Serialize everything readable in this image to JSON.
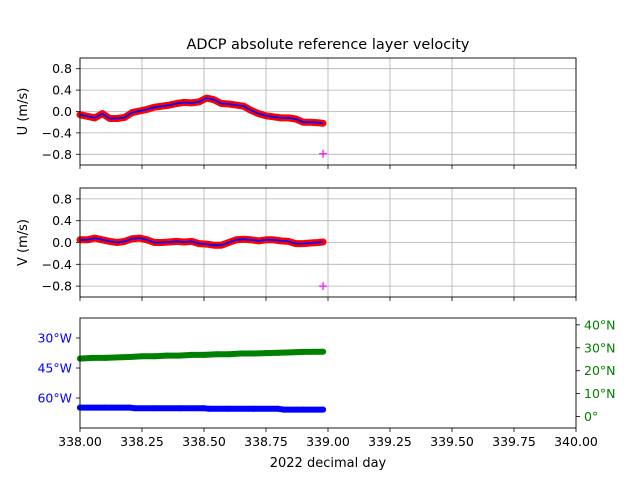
{
  "title": "ADCP absolute reference layer velocity",
  "colors": {
    "grid": "#b0b0b0",
    "u_red": "#ff0000",
    "u_blue": "#0000ff",
    "magenta": "#ff00ff",
    "lon": "#0000ff",
    "lat": "#008000"
  },
  "chart_data": [
    {
      "type": "scatter",
      "panel": "u",
      "ylabel": "U (m/s)",
      "xlim": [
        338.0,
        340.0
      ],
      "ylim": [
        -1.0,
        1.0
      ],
      "yticks": [
        -0.8,
        -0.4,
        0.0,
        0.4,
        0.8
      ],
      "ytick_labels": [
        "−0.8",
        "−0.4",
        "0.0",
        "0.4",
        "0.8"
      ],
      "grid": true,
      "series": [
        {
          "marker": "dot",
          "x": [
            338.0,
            338.03,
            338.06,
            338.09,
            338.12,
            338.15,
            338.18,
            338.21,
            338.24,
            338.27,
            338.3,
            338.33,
            338.36,
            338.39,
            338.42,
            338.45,
            338.48,
            338.51,
            338.54,
            338.57,
            338.6,
            338.63,
            338.66,
            338.69,
            338.72,
            338.75,
            338.78,
            338.81,
            338.84,
            338.87,
            338.9,
            338.93,
            338.96,
            338.98
          ],
          "y": [
            -0.06,
            -0.09,
            -0.12,
            -0.04,
            -0.13,
            -0.13,
            -0.11,
            -0.02,
            0.01,
            0.04,
            0.08,
            0.1,
            0.12,
            0.15,
            0.17,
            0.16,
            0.18,
            0.25,
            0.22,
            0.15,
            0.14,
            0.12,
            0.1,
            0.02,
            -0.04,
            -0.08,
            -0.1,
            -0.12,
            -0.12,
            -0.14,
            -0.2,
            -0.2,
            -0.21,
            -0.22
          ]
        },
        {
          "marker": "plus",
          "x": [
            338.98
          ],
          "y": [
            -0.79
          ]
        }
      ]
    },
    {
      "type": "scatter",
      "panel": "v",
      "ylabel": "V (m/s)",
      "xlim": [
        338.0,
        340.0
      ],
      "ylim": [
        -1.0,
        1.0
      ],
      "yticks": [
        -0.8,
        -0.4,
        0.0,
        0.4,
        0.8
      ],
      "ytick_labels": [
        "−0.8",
        "−0.4",
        "0.0",
        "0.4",
        "0.8"
      ],
      "grid": true,
      "series": [
        {
          "marker": "dot",
          "x": [
            338.0,
            338.03,
            338.06,
            338.09,
            338.12,
            338.15,
            338.18,
            338.21,
            338.24,
            338.27,
            338.3,
            338.33,
            338.36,
            338.39,
            338.42,
            338.45,
            338.48,
            338.51,
            338.54,
            338.57,
            338.6,
            338.63,
            338.66,
            338.69,
            338.72,
            338.75,
            338.78,
            338.81,
            338.84,
            338.87,
            338.9,
            338.93,
            338.96,
            338.98
          ],
          "y": [
            0.05,
            0.05,
            0.08,
            0.05,
            0.02,
            0.0,
            0.02,
            0.07,
            0.08,
            0.05,
            0.0,
            0.0,
            0.01,
            0.02,
            0.01,
            0.02,
            -0.02,
            -0.03,
            -0.05,
            -0.05,
            0.0,
            0.05,
            0.06,
            0.05,
            0.03,
            0.05,
            0.05,
            0.03,
            0.02,
            -0.02,
            -0.02,
            -0.01,
            0.0,
            0.01
          ]
        },
        {
          "marker": "plus",
          "x": [
            338.98
          ],
          "y": [
            -0.8
          ]
        }
      ]
    },
    {
      "type": "scatter",
      "panel": "position",
      "xlabel": "2022 decimal day",
      "xlim": [
        338.0,
        340.0
      ],
      "xticks": [
        338.0,
        338.25,
        338.5,
        338.75,
        339.0,
        339.25,
        339.5,
        339.75,
        340.0
      ],
      "xtick_labels": [
        "338.00",
        "338.25",
        "338.50",
        "338.75",
        "339.00",
        "339.25",
        "339.50",
        "339.75",
        "340.00"
      ],
      "left_axis": {
        "ylim": [
          -75.0,
          -20.0
        ],
        "yticks": [
          -60,
          -45,
          -30
        ],
        "ytick_labels": [
          "60°W",
          "45°W",
          "30°W"
        ]
      },
      "right_axis": {
        "ylim": [
          -5.0,
          43.0
        ],
        "yticks": [
          0,
          10,
          20,
          30,
          40
        ],
        "ytick_labels": [
          "0°",
          "10°N",
          "20°N",
          "30°N",
          "40°N"
        ]
      },
      "grid": false,
      "series": [
        {
          "axis": "left",
          "x": [
            338.0,
            338.1,
            338.2,
            338.22,
            338.3,
            338.4,
            338.5,
            338.52,
            338.6,
            338.7,
            338.8,
            338.82,
            338.9,
            338.98
          ],
          "y": [
            -64.8,
            -64.8,
            -64.8,
            -65.1,
            -65.1,
            -65.1,
            -65.1,
            -65.4,
            -65.4,
            -65.4,
            -65.4,
            -65.8,
            -65.8,
            -65.8
          ]
        },
        {
          "axis": "right",
          "x": [
            338.0,
            338.05,
            338.1,
            338.2,
            338.25,
            338.3,
            338.35,
            338.4,
            338.45,
            338.5,
            338.55,
            338.6,
            338.65,
            338.7,
            338.75,
            338.8,
            338.85,
            338.9,
            338.98
          ],
          "y": [
            25.3,
            25.6,
            25.6,
            26.0,
            26.3,
            26.3,
            26.6,
            26.6,
            26.9,
            26.9,
            27.2,
            27.2,
            27.5,
            27.5,
            27.7,
            27.8,
            28.0,
            28.2,
            28.3
          ]
        }
      ]
    }
  ]
}
